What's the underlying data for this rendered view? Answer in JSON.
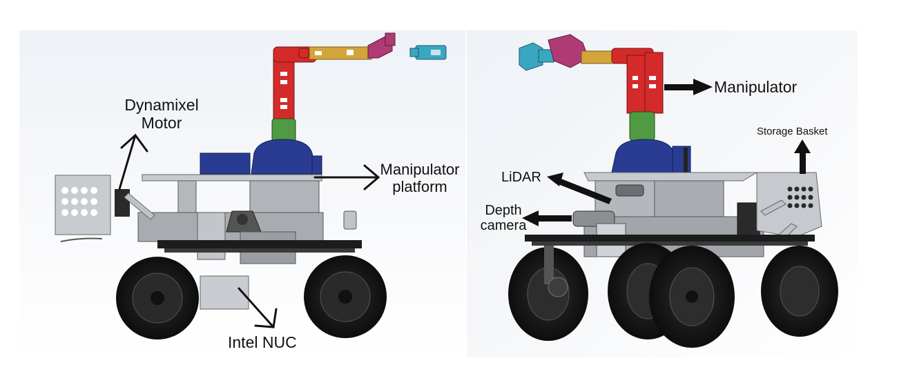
{
  "figure": {
    "left_view": {
      "labels": {
        "dynamixel_motor": [
          "Dynamixel",
          "Motor"
        ],
        "manipulator_platform": [
          "Manipulator",
          "platform"
        ],
        "intel_nuc": "Intel NUC"
      }
    },
    "right_view": {
      "labels": {
        "manipulator": "Manipulator",
        "storage_basket": "Storage Basket",
        "lidar": "LiDAR",
        "depth_camera": [
          "Depth",
          "camera"
        ]
      }
    }
  },
  "colors": {
    "background": "#ffffff",
    "panel_bg_light": "#f4f6f9",
    "panel_bg_dark": "#dfe5ee",
    "arm_red": "#d42a2a",
    "arm_gold": "#d2a43a",
    "gripper_magenta": "#b03a74",
    "gripper_cyan": "#3aa7c2",
    "joint_green": "#4f9a42",
    "base_blue": "#2a3c92",
    "chassis_grey": "#a8acb0",
    "tire_black": "#1e1e1e"
  }
}
